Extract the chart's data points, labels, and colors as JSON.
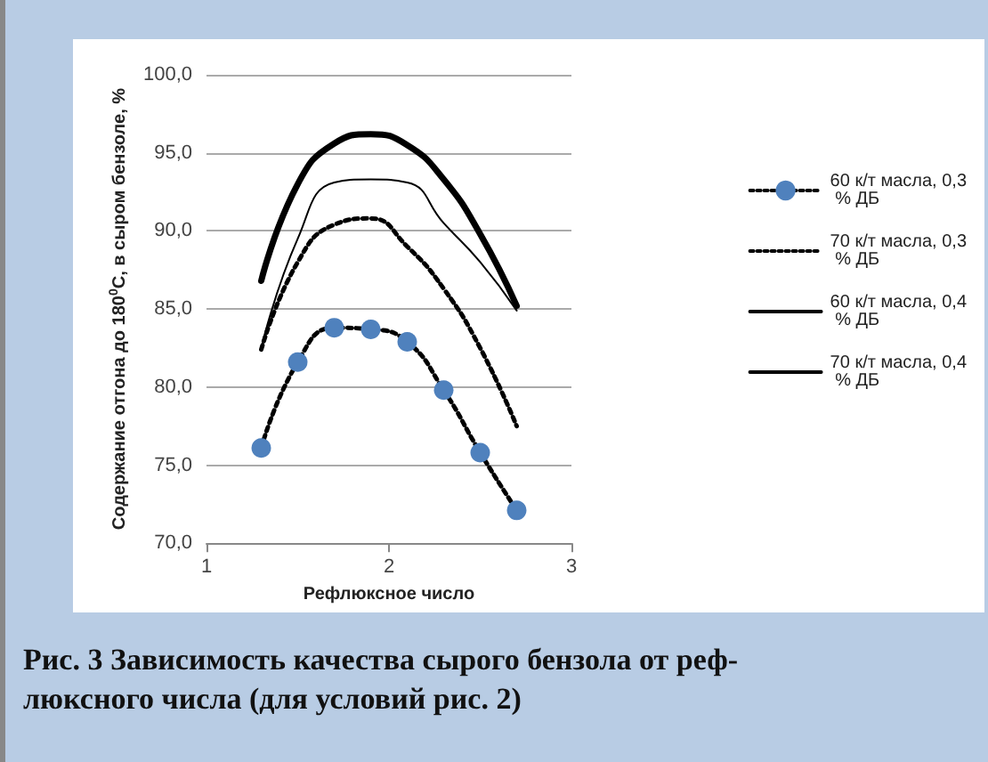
{
  "chart_data": {
    "type": "line",
    "title": "Рис. 3 Зависимость качества сырого бензола от реф-\nлюксного числа (для условий рис. 2)",
    "xlabel": "Рефлюксное число",
    "ylabel": "Содержание отгона до 180$^{0}$С, в сыром бензоле, %",
    "x": [
      1.3,
      1.5,
      1.7,
      1.9,
      2.1,
      2.3,
      2.5,
      2.7
    ],
    "series": [
      {
        "name": "60 к/т масла, 0,3 % ДБ",
        "color": "#4f81bd",
        "marker": "circle",
        "line_style": "dotted",
        "values": [
          76.1,
          81.6,
          83.8,
          83.7,
          82.9,
          79.8,
          75.8,
          72.1
        ]
      },
      {
        "name": "70 к/т масла, 0,3 % ДБ",
        "color": "#000000",
        "marker": "none",
        "line_style": "dotted",
        "values": [
          82.4,
          88.0,
          90.4,
          90.8,
          89.0,
          86.3,
          82.5,
          77.5
        ]
      },
      {
        "name": "60 к/т масла, 0,4 % ДБ",
        "color": "#000000",
        "marker": "none",
        "line_style": "solid",
        "values": [
          82.5,
          89.5,
          93.1,
          93.3,
          93.1,
          90.5,
          88.0,
          84.9
        ]
      },
      {
        "name": "70 к/т масла, 0,4 % ДБ",
        "color": "#000000",
        "marker": "none",
        "line_style": "solid",
        "values": [
          86.8,
          93.0,
          95.6,
          96.2,
          95.5,
          93.3,
          89.8,
          85.2
        ]
      }
    ],
    "xlim": [
      1,
      3
    ],
    "xticks": [
      1,
      2,
      3
    ],
    "ylim": [
      70,
      100
    ],
    "yticks": [
      {
        "value": 70,
        "label": "70,0"
      },
      {
        "value": 75,
        "label": "75,0"
      },
      {
        "value": 80,
        "label": "80,0"
      },
      {
        "value": 85,
        "label": "85,0"
      },
      {
        "value": 90,
        "label": "90,0"
      },
      {
        "value": 95,
        "label": "95,0"
      },
      {
        "value": 100,
        "label": "100,0"
      }
    ],
    "grid": "y",
    "legend": "right"
  }
}
